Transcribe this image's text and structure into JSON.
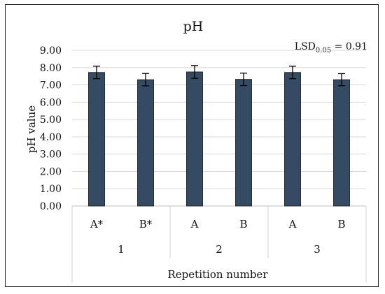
{
  "chart_data": {
    "type": "bar",
    "title": "pH",
    "ylabel": "pH value",
    "xlabel": "Repetition number",
    "ylim": [
      0,
      9
    ],
    "y_ticks": [
      "0.00",
      "1.00",
      "2.00",
      "3.00",
      "4.00",
      "5.00",
      "6.00",
      "7.00",
      "8.00",
      "9.00"
    ],
    "grid": true,
    "groups": [
      {
        "label": "1",
        "categories": [
          "A*",
          "B*"
        ]
      },
      {
        "label": "2",
        "categories": [
          "A",
          "B"
        ]
      },
      {
        "label": "3",
        "categories": [
          "A",
          "B"
        ]
      }
    ],
    "categories": [
      "A*",
      "B*",
      "A",
      "B",
      "A",
      "B"
    ],
    "values": [
      7.72,
      7.3,
      7.75,
      7.32,
      7.72,
      7.3
    ],
    "error": [
      0.36,
      0.36,
      0.37,
      0.36,
      0.36,
      0.35
    ],
    "annotation": {
      "prefix": "LSD",
      "subscript": "0.05",
      "suffix": " = 0.91"
    },
    "bar_color": "#354B63"
  }
}
